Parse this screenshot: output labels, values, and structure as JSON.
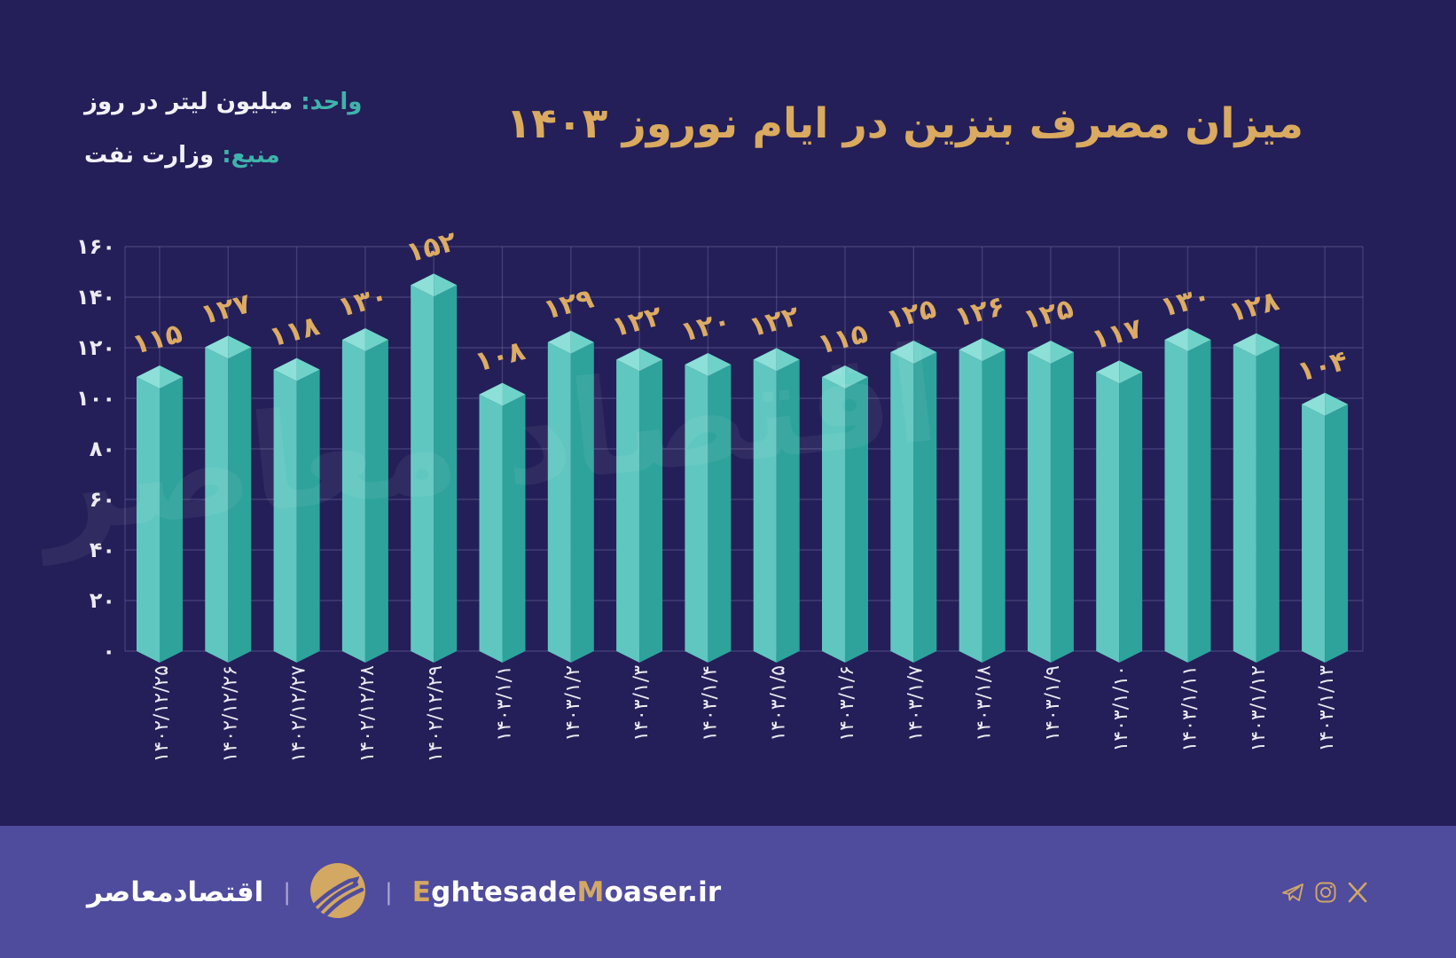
{
  "page": {
    "background": "#241f58",
    "footer_background": "#4f4b9d",
    "gold": "#d9aa5f",
    "teal": "#3fb3ab",
    "white": "#f2f1f8"
  },
  "header": {
    "title": "میزان مصرف بنزین در ایام نوروز ۱۴۰۳",
    "unit_label": "واحد:",
    "unit_value": "میلیون لیتر در روز",
    "source_label": "منبع:",
    "source_value": "وزارت نفت"
  },
  "watermark": "اقتصاد معاصر",
  "chart_data": {
    "type": "bar",
    "title": "میزان مصرف بنزین در ایام نوروز ۱۴۰۳",
    "ylabel": "میلیون لیتر در روز",
    "source": "وزارت نفت",
    "categories": [
      "۱۴۰۲/۱۲/۲۵",
      "۱۴۰۲/۱۲/۲۶",
      "۱۴۰۲/۱۲/۲۷",
      "۱۴۰۲/۱۲/۲۸",
      "۱۴۰۲/۱۲/۲۹",
      "۱۴۰۳/۱/۱",
      "۱۴۰۳/۱/۲",
      "۱۴۰۳/۱/۳",
      "۱۴۰۳/۱/۴",
      "۱۴۰۳/۱/۵",
      "۱۴۰۳/۱/۶",
      "۱۴۰۳/۱/۷",
      "۱۴۰۳/۱/۸",
      "۱۴۰۳/۱/۹",
      "۱۴۰۳/۱/۱۰",
      "۱۴۰۳/۱/۱۱",
      "۱۴۰۳/۱/۱۲",
      "۱۴۰۳/۱/۱۳"
    ],
    "values": [
      115,
      127,
      118,
      130,
      152,
      108,
      129,
      122,
      120,
      122,
      115,
      125,
      126,
      125,
      117,
      130,
      128,
      104
    ],
    "value_labels": [
      "۱۱۵",
      "۱۲۷",
      "۱۱۸",
      "۱۳۰",
      "۱۵۲",
      "۱۰۸",
      "۱۲۹",
      "۱۲۲",
      "۱۲۰",
      "۱۲۲",
      "۱۱۵",
      "۱۲۵",
      "۱۲۶",
      "۱۲۵",
      "۱۱۷",
      "۱۳۰",
      "۱۲۸",
      "۱۰۴"
    ],
    "y_tick_values": [
      0,
      20,
      40,
      60,
      80,
      100,
      120,
      140,
      160
    ],
    "y_tick_labels": [
      "۰",
      "۲۰",
      "۴۰",
      "۶۰",
      "۸۰",
      "۱۰۰",
      "۱۲۰",
      "۱۴۰",
      "۱۶۰"
    ],
    "ylim": [
      0,
      160
    ],
    "grid": true,
    "legend": false,
    "colors": {
      "bar_left_face": "#60c7c0",
      "bar_right_face": "#2ea39b",
      "cap_left": "#8ce0d8",
      "cap_right": "#6fd2c9",
      "value_label": "#dcab64",
      "tick_label": "#eceaf2",
      "gridline": "rgba(173,170,215,0.22)"
    }
  },
  "footer": {
    "brand_fa": "اقتصادمعاصر",
    "separator": "|",
    "site_parts": [
      "E",
      "ghtesade",
      "M",
      "oaser",
      ".ir"
    ],
    "social_icons": [
      "telegram-icon",
      "instagram-icon",
      "x-icon"
    ],
    "icon_color": "#cfa768"
  }
}
